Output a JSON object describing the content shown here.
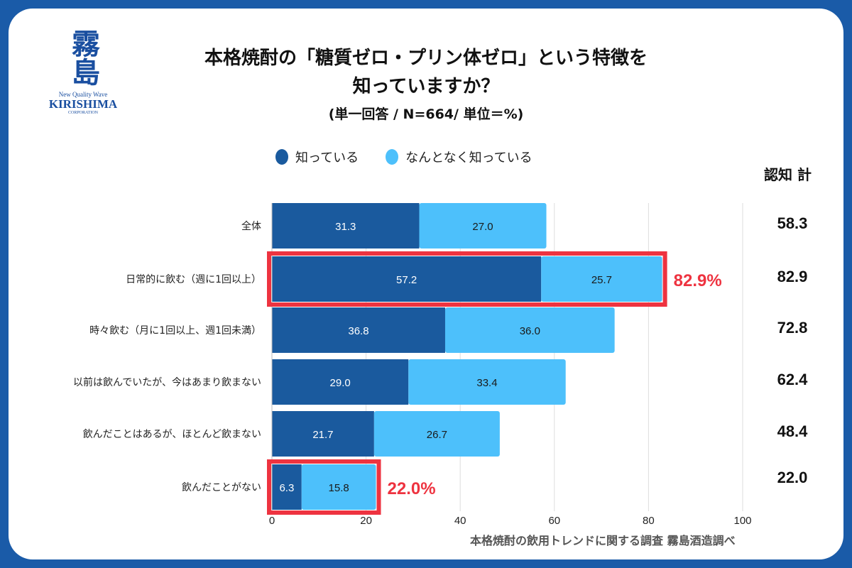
{
  "logo": {
    "kanji": "霧島",
    "tagline": "New Quality Wave",
    "brand": "KIRISHIMA",
    "corp": "CORPORATION"
  },
  "colors": {
    "frame": "#1a5ba8",
    "know": "#1a5a9e",
    "somewhat": "#4dc0fb",
    "highlight": "#ee3340",
    "grid": "#dddddd"
  },
  "chart_data": {
    "type": "bar",
    "orientation": "horizontal",
    "stacked": true,
    "title": "本格焼酎の「糖質ゼロ・プリン体ゼロ」という特徴を知っていますか？",
    "title_lines": [
      "本格焼酎の「糖質ゼロ・プリン体ゼロ」という特徴を",
      "知っていますか？"
    ],
    "subtitle": "(単一回答 / N=664/ 単位＝%)",
    "categories": [
      "全体",
      "日常的に飲む（週に1回以上）",
      "時々飲む（月に1回以上、週1回未満）",
      "以前は飲んでいたが、今はあまり飲まない",
      "飲んだことはあるが、ほとんど飲まない",
      "飲んだことがない"
    ],
    "series": [
      {
        "name": "知っている",
        "values": [
          31.3,
          57.2,
          36.8,
          29.0,
          21.7,
          6.3
        ]
      },
      {
        "name": "なんとなく知っている",
        "values": [
          27.0,
          25.7,
          36.0,
          33.4,
          26.7,
          15.8
        ]
      }
    ],
    "totals_header": "認知 計",
    "totals": [
      "58.3",
      "82.9",
      "72.8",
      "62.4",
      "48.4",
      "22.0"
    ],
    "highlights": [
      {
        "category_index": 1,
        "label": "82.9%"
      },
      {
        "category_index": 5,
        "label": "22.0%"
      }
    ],
    "xlim": [
      0,
      100
    ],
    "xticks": [
      0,
      20,
      40,
      60,
      80,
      100
    ],
    "grid": true,
    "legend_position": "top",
    "source": "本格焼酎の飲用トレンドに関する調査 霧島酒造調べ"
  }
}
